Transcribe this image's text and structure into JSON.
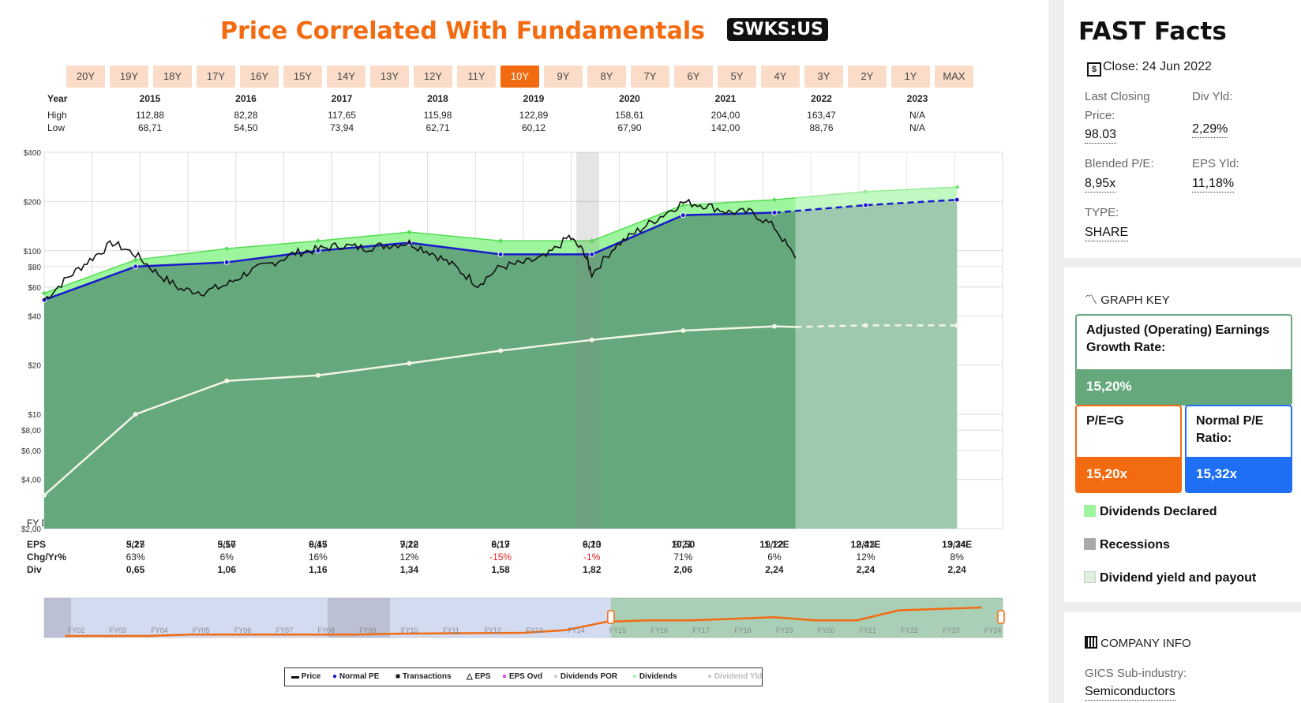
{
  "header": {
    "title": "Price Correlated With Fundamentals",
    "ticker": "SWKS:US"
  },
  "ranges": [
    "20Y",
    "19Y",
    "18Y",
    "17Y",
    "16Y",
    "15Y",
    "14Y",
    "13Y",
    "12Y",
    "11Y",
    "10Y",
    "9Y",
    "8Y",
    "7Y",
    "6Y",
    "5Y",
    "4Y",
    "3Y",
    "2Y",
    "1Y",
    "MAX"
  ],
  "active_range": "10Y",
  "year_table": {
    "labels": {
      "year": "Year",
      "high": "High",
      "low": "Low"
    },
    "years": [
      "2015",
      "2016",
      "2017",
      "2018",
      "2019",
      "2020",
      "2021",
      "2022",
      "2023"
    ],
    "high": [
      "112,88",
      "82,28",
      "117,65",
      "115,98",
      "122,89",
      "158,61",
      "204,00",
      "163,47",
      "N/A"
    ],
    "low": [
      "68,71",
      "54,50",
      "73,94",
      "62,71",
      "60,12",
      "67,90",
      "142,00",
      "88,76",
      "N/A"
    ]
  },
  "annual_table": {
    "labels": {
      "fy": "FY Date",
      "eps": "EPS",
      "chg": "Chg/Yr%",
      "div": "Div"
    },
    "dates": [
      "9/15",
      "9/16",
      "9/17",
      "9/18",
      "9/19",
      "9/20",
      "9/21",
      "9/22",
      "9/23",
      "9/24"
    ],
    "eps": [
      "5,27",
      "5,57",
      "6,45",
      "7,22",
      "6,17",
      "6,13",
      "10,50",
      "11,12E",
      "12,41E",
      "13,34E"
    ],
    "chg": [
      "63%",
      "6%",
      "16%",
      "12%",
      "-15%",
      "-1%",
      "71%",
      "6%",
      "12%",
      "8%"
    ],
    "div": [
      "0,65",
      "1,06",
      "1,16",
      "1,34",
      "1,58",
      "1,82",
      "2,06",
      "2,24",
      "2,24",
      "2,24"
    ]
  },
  "chart_data": {
    "type": "line",
    "y_scale": "log",
    "y_ticks": [
      2,
      4,
      6,
      8,
      10,
      20,
      40,
      60,
      80,
      100,
      200,
      400
    ],
    "y_tick_labels": [
      "$2,00",
      "$4,00",
      "$6,00",
      "$8,00",
      "$10",
      "$20",
      "$40",
      "$60",
      "$80",
      "$100",
      "$200",
      "$400"
    ],
    "ylim": [
      2,
      400
    ],
    "xlim": [
      2014.25,
      2024.75
    ],
    "x_tick_labels": [
      "9/15",
      "9/16",
      "9/17",
      "9/18",
      "9/19",
      "9/20",
      "9/21",
      "9/22",
      "9/23",
      "9/24"
    ],
    "recession": [
      2020.08,
      2020.33
    ],
    "price": {
      "x": [
        2014.25,
        2014.5,
        2014.75,
        2015.0,
        2015.25,
        2015.5,
        2015.75,
        2016.0,
        2016.25,
        2016.5,
        2016.75,
        2017.0,
        2017.25,
        2017.5,
        2017.75,
        2018.0,
        2018.25,
        2018.5,
        2018.75,
        2019.0,
        2019.25,
        2019.5,
        2019.75,
        2020.0,
        2020.17,
        2020.25,
        2020.5,
        2020.75,
        2021.0,
        2021.25,
        2021.5,
        2021.75,
        2022.0,
        2022.25,
        2022.48
      ],
      "y": [
        50,
        68,
        88,
        112,
        95,
        72,
        58,
        56,
        62,
        75,
        84,
        97,
        102,
        108,
        104,
        108,
        112,
        97,
        80,
        62,
        80,
        84,
        92,
        122,
        97,
        72,
        106,
        132,
        162,
        198,
        190,
        172,
        172,
        140,
        90
      ]
    },
    "normal_pe": {
      "x": [
        2014.25,
        2015.25,
        2016.25,
        2017.25,
        2018.25,
        2019.25,
        2020.25,
        2021.25,
        2022.25,
        2023.25,
        2024.25
      ],
      "y": [
        50,
        80,
        85,
        100,
        112,
        95,
        95,
        165,
        171,
        190,
        205
      ]
    },
    "dividends": {
      "x": [
        2014.25,
        2015.25,
        2016.25,
        2017.25,
        2018.25,
        2019.25,
        2020.25,
        2021.25,
        2022.25,
        2023.25,
        2024.25
      ],
      "y": [
        55,
        88,
        103,
        115,
        130,
        115,
        115,
        190,
        205,
        230,
        245
      ]
    },
    "eps_line": {
      "x": [
        2014.25,
        2015.25,
        2016.25,
        2017.25,
        2018.25,
        2019.25,
        2020.25,
        2021.25,
        2022.25,
        2023.25,
        2024.25
      ],
      "y": [
        3.2,
        10,
        16,
        17.3,
        20.5,
        24.5,
        28.5,
        32.5,
        34.5,
        35,
        35
      ]
    },
    "mini_fy_labels": [
      "FY02",
      "FY03",
      "FY04",
      "FY05",
      "FY06",
      "FY07",
      "FY08",
      "FY09",
      "FY10",
      "FY11",
      "FY12",
      "FY13",
      "FY14",
      "FY15",
      "FY16",
      "FY17",
      "FY18",
      "FY19",
      "FY20",
      "FY21",
      "FY22",
      "FY23",
      "FY24"
    ],
    "mini_price": [
      0,
      0,
      0,
      0.05,
      0.05,
      0.05,
      0.05,
      0.05,
      0.08,
      0.09,
      0.1,
      0.11,
      0.2,
      0.5,
      0.55,
      0.55,
      0.6,
      0.66,
      0.55,
      0.55,
      0.9,
      0.95,
      1.0
    ]
  },
  "legend": [
    "Price",
    "Normal PE",
    "Transactions",
    "EPS",
    "EPS Ovd",
    "Dividends POR",
    "Dividends",
    "Dividend Yld"
  ],
  "facts": {
    "title": "FAST Facts",
    "close": "Close: 24 Jun 2022",
    "last_close_label": "Last Closing Price:",
    "last_close": "98.03",
    "div_yld_label": "Div Yld:",
    "div_yld": "2,29%",
    "blended_pe_label": "Blended P/E:",
    "blended_pe": "8,95x",
    "eps_yld_label": "EPS Yld:",
    "eps_yld": "11,18%",
    "type_label": "TYPE:",
    "type": "SHARE"
  },
  "graph_key": {
    "title": "GRAPH KEY",
    "growth_label": "Adjusted (Operating) Earnings Growth Rate:",
    "growth": "15,20%",
    "peg_label": "P/E=G",
    "peg": "15,20x",
    "normal_pe_label": "Normal P/E Ratio:",
    "normal_pe": "15,32x",
    "items": [
      "Dividends Declared",
      "Recessions",
      "Dividend yield and payout"
    ]
  },
  "company": {
    "title": "COMPANY INFO",
    "gics_label": "GICS Sub-industry:",
    "gics": "Semiconductors"
  },
  "colors": {
    "orange": "#f26b10",
    "green_area": "#64a87c",
    "dividend_green": "#9df59d",
    "blue": "#1a1acc",
    "key_blue": "#1f6ff5"
  }
}
